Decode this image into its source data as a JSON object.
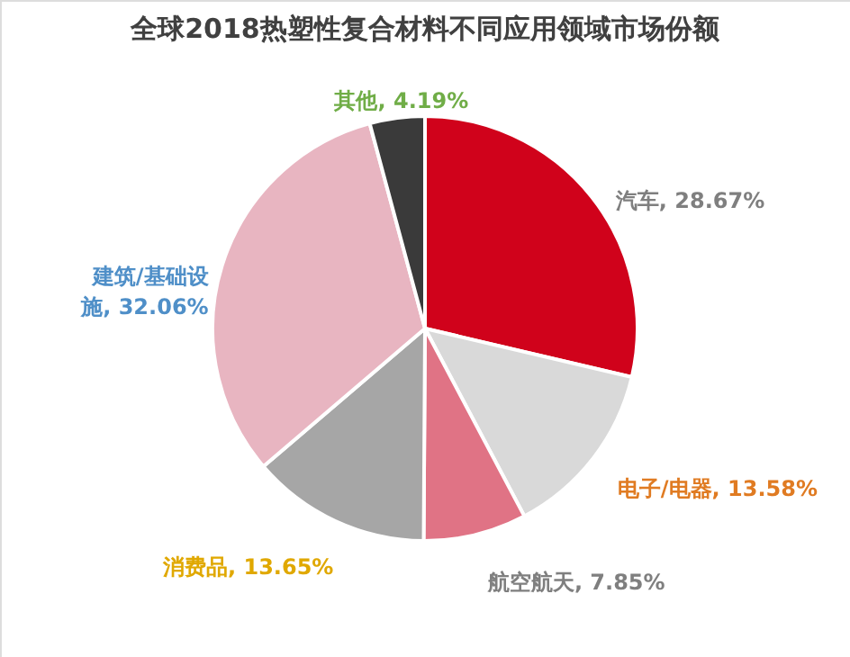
{
  "chart_data": {
    "type": "pie",
    "title": "全球2018热塑性复合材料不同应用领域市场份额",
    "categories": [
      "汽车",
      "电子/电器",
      "航空航天",
      "消费品",
      "建筑/基础设施",
      "其他"
    ],
    "values": [
      28.67,
      13.58,
      7.85,
      13.65,
      32.06,
      4.19
    ],
    "colors": [
      "#d0021b",
      "#d9d9d9",
      "#e07385",
      "#a6a6a6",
      "#e8b5c1",
      "#3a3a3a"
    ],
    "value_labels": [
      "28.67%",
      "13.58%",
      "7.85%",
      "13.65%",
      "32.06%",
      "4.19%"
    ]
  }
}
